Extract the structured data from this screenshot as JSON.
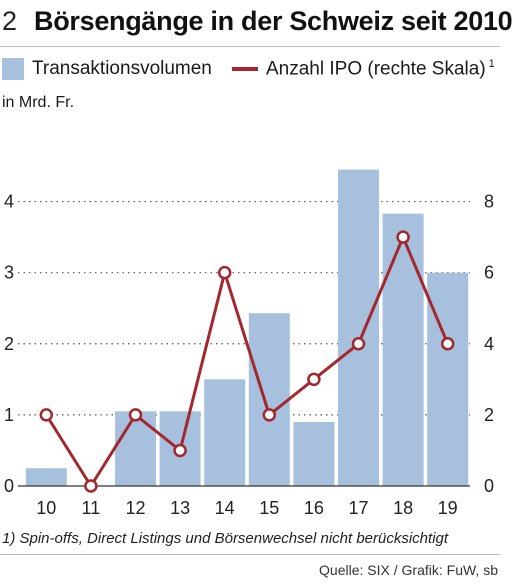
{
  "header": {
    "number": "2",
    "title": "Börsengänge in der Schweiz seit 2010"
  },
  "legend": {
    "bar_label": "Transaktionsvolumen",
    "line_label": "Anzahl IPO (rechte Skala)",
    "line_marker": "1"
  },
  "colors": {
    "bar": "#a7c0de",
    "line": "#a3272d",
    "grid": "#555555"
  },
  "footnote": "1) Spin-offs, Direct Listings und Börsenwechsel nicht berücksichtigt",
  "source": "Quelle: SIX / Grafik: FuW, sb",
  "chart_data": {
    "type": "bar",
    "categories": [
      "10",
      "11",
      "12",
      "13",
      "14",
      "15",
      "16",
      "17",
      "18",
      "19"
    ],
    "ylabel": "in Mrd. Fr.",
    "ylim": [
      0,
      4.5
    ],
    "yticks": [
      0,
      1,
      2,
      3,
      4
    ],
    "y2lim": [
      0,
      9
    ],
    "y2ticks": [
      0,
      2,
      4,
      6,
      8
    ],
    "grid": "dotted horizontal",
    "legend_position": "top",
    "series": [
      {
        "name": "Transaktionsvolumen",
        "type": "bar",
        "axis": "left",
        "values": [
          0.25,
          0.0,
          1.05,
          1.05,
          1.5,
          2.43,
          0.9,
          4.45,
          3.83,
          3.0
        ]
      },
      {
        "name": "Anzahl IPO (rechte Skala)",
        "type": "line",
        "axis": "right",
        "values": [
          2,
          0,
          2,
          1,
          6,
          2,
          3,
          4,
          7,
          4
        ]
      }
    ]
  }
}
